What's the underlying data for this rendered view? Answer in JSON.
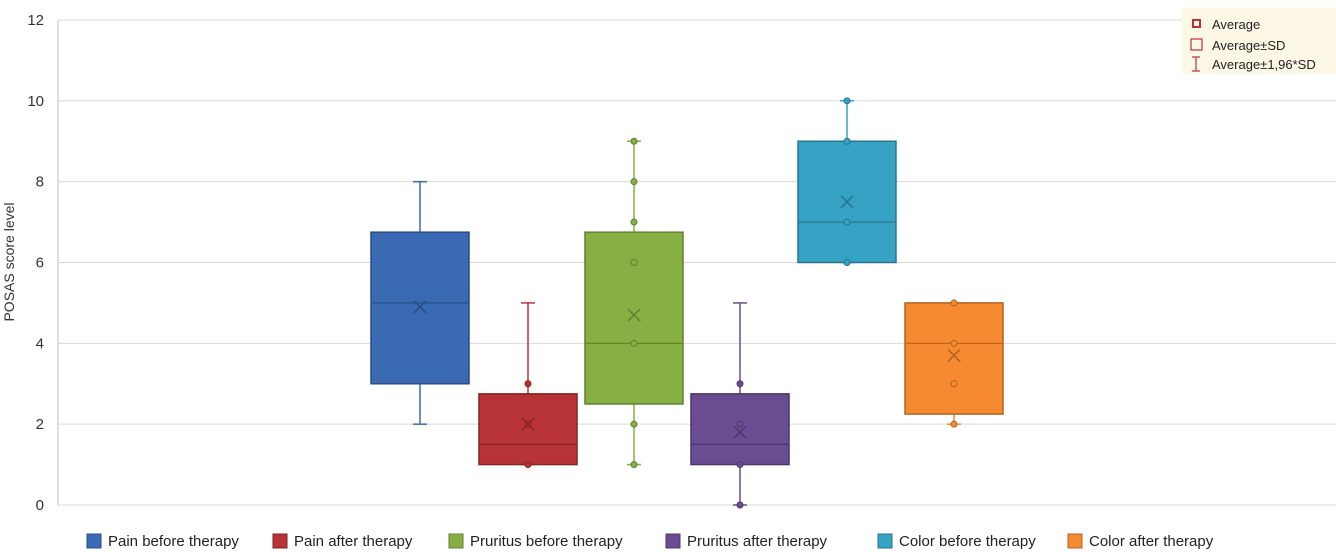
{
  "chart_data": {
    "type": "box",
    "title": "",
    "ylabel": "POSAS score level",
    "xlabel": "",
    "ylim": [
      0,
      12
    ],
    "yticks": [
      0,
      2,
      4,
      6,
      8,
      10,
      12
    ],
    "grid": true,
    "legend_position": "bottom",
    "series": [
      {
        "name": "Pain before therapy",
        "color": "#3a6ab3",
        "min": 2,
        "q1": 3,
        "median": 5,
        "q3": 6.75,
        "max": 8,
        "mean": 4.9,
        "points": []
      },
      {
        "name": "Pain after therapy",
        "color": "#b73336",
        "min": 1,
        "q1": 1,
        "median": 1.5,
        "q3": 2.75,
        "max": 5,
        "mean": 2,
        "points": [
          1,
          2,
          3
        ]
      },
      {
        "name": "Pruritus before therapy",
        "color": "#86b043",
        "min": 1,
        "q1": 2.5,
        "median": 4,
        "q3": 6.75,
        "max": 9,
        "mean": 4.7,
        "points": [
          1,
          2,
          4,
          6,
          7,
          8,
          9
        ]
      },
      {
        "name": "Pruritus after therapy",
        "color": "#6a4c93",
        "min": 0,
        "q1": 1,
        "median": 1.5,
        "q3": 2.75,
        "max": 5,
        "mean": 1.8,
        "points": [
          0,
          1,
          2,
          3
        ]
      },
      {
        "name": "Color before therapy",
        "color": "#36a3c4",
        "min": 6,
        "q1": 6,
        "median": 7,
        "q3": 9,
        "max": 10,
        "mean": 7.5,
        "points": [
          6,
          7,
          9,
          10
        ]
      },
      {
        "name": "Color after therapy",
        "color": "#f58a31",
        "min": 2,
        "q1": 2.25,
        "median": 4,
        "q3": 5,
        "max": 5,
        "mean": 3.7,
        "points": [
          2,
          3,
          4,
          5
        ]
      }
    ],
    "stat_legend": {
      "position": "top-right",
      "items": [
        {
          "label": "Average",
          "symbol": "dot-square"
        },
        {
          "label": "Average±SD",
          "symbol": "square"
        },
        {
          "label": "Average±1,96*SD",
          "symbol": "whisker"
        }
      ],
      "color": "#b73336",
      "background": "#fdf8e6"
    }
  }
}
